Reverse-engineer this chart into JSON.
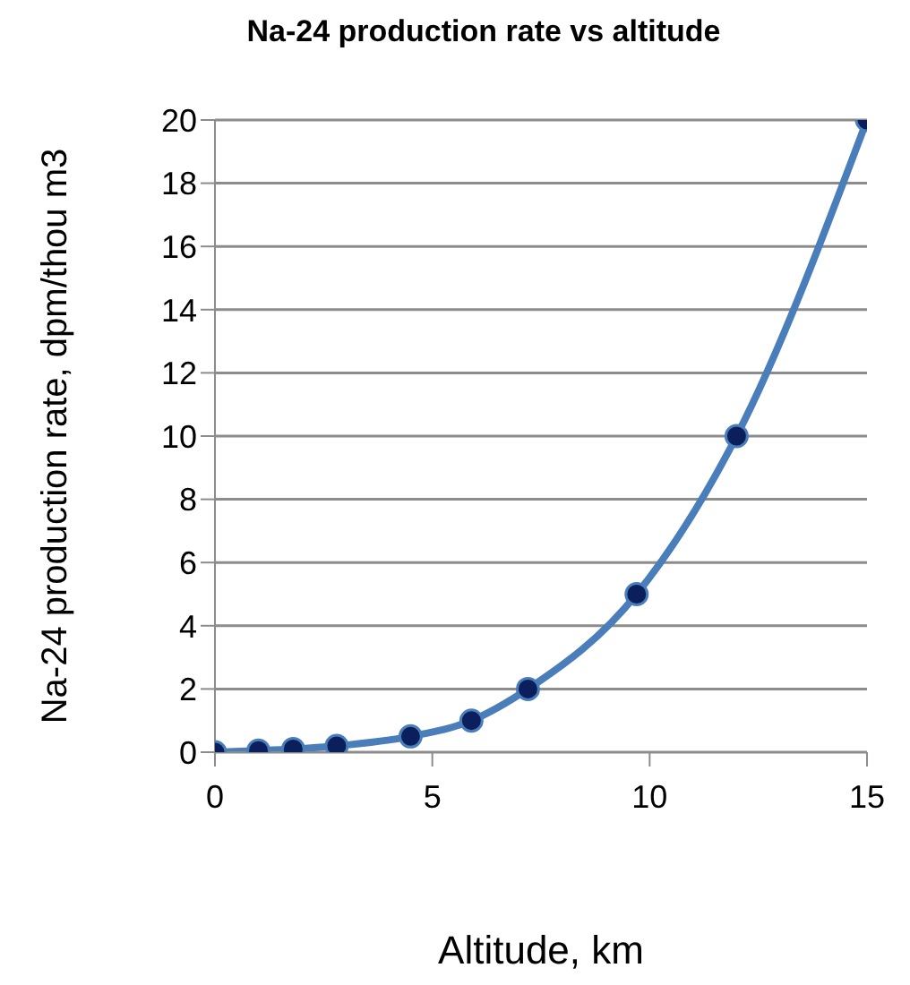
{
  "chart_data": {
    "type": "line",
    "title": "Na-24 production rate vs altitude",
    "xlabel": "Altitude, km",
    "ylabel": "Na-24 production rate, dpm/thou m3",
    "x": [
      0,
      1,
      1.8,
      2.8,
      4.5,
      5.9,
      7.2,
      9.7,
      12,
      15
    ],
    "series": [
      {
        "color": "#4a7ebb",
        "values": [
          0,
          0.05,
          0.1,
          0.2,
          0.5,
          1,
          2,
          5,
          10,
          20
        ]
      }
    ],
    "xlim": [
      0,
      15
    ],
    "xticks": [
      0,
      5,
      10,
      15
    ],
    "ylim": [
      0,
      20
    ],
    "yticks": [
      0,
      2,
      4,
      6,
      8,
      10,
      12,
      14,
      16,
      18,
      20
    ],
    "grid": "y",
    "legend": false,
    "marker": "circle",
    "line_style": "solid"
  }
}
